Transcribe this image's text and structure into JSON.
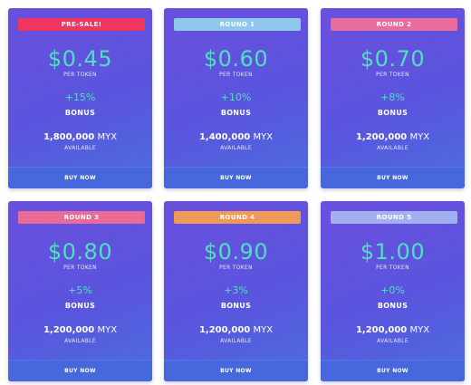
{
  "colors": {
    "card_gradient_start": "#6a4fdd",
    "card_gradient_end": "#4b6ddf",
    "accent_teal": "#4fe0c0",
    "buy_bar": "#4768dd"
  },
  "cards": [
    {
      "badge": "PRE-SALE!",
      "badge_color": "#f0365e",
      "price": "$0.45",
      "per_token": "PER TOKEN",
      "bonus_pct": "+15%",
      "bonus_label": "BONUS",
      "amount": "1,800,000",
      "unit": "MYX",
      "available": "AVAILABLE",
      "buy": "BUY NOW"
    },
    {
      "badge": "ROUND 1",
      "badge_color": "#8fc8ee",
      "price": "$0.60",
      "per_token": "PER TOKEN",
      "bonus_pct": "+10%",
      "bonus_label": "BONUS",
      "amount": "1,400,000",
      "unit": "MYX",
      "available": "AVAILABLE",
      "buy": "BUY NOW"
    },
    {
      "badge": "ROUND 2",
      "badge_color": "#e96c9e",
      "price": "$0.70",
      "per_token": "PER TOKEN",
      "bonus_pct": "+8%",
      "bonus_label": "BONUS",
      "amount": "1,200,000",
      "unit": "MYX",
      "available": "AVAILABLE",
      "buy": "BUY NOW"
    },
    {
      "badge": "ROUND 3",
      "badge_color": "#ea6a98",
      "price": "$0.80",
      "per_token": "PER TOKEN",
      "bonus_pct": "+5%",
      "bonus_label": "BONUS",
      "amount": "1,200,000",
      "unit": "MYX",
      "available": "AVAILABLE",
      "buy": "BUY NOW"
    },
    {
      "badge": "ROUND 4",
      "badge_color": "#f09a58",
      "price": "$0.90",
      "per_token": "PER TOKEN",
      "bonus_pct": "+3%",
      "bonus_label": "BONUS",
      "amount": "1,200,000",
      "unit": "MYX",
      "available": "AVAILABLE",
      "buy": "BUY NOW"
    },
    {
      "badge": "ROUND 5",
      "badge_color": "#a2b0f2",
      "price": "$1.00",
      "per_token": "PER TOKEN",
      "bonus_pct": "+0%",
      "bonus_label": "BONUS",
      "amount": "1,200,000",
      "unit": "MYX",
      "available": "AVAILABLE",
      "buy": "BUY NOW"
    }
  ]
}
